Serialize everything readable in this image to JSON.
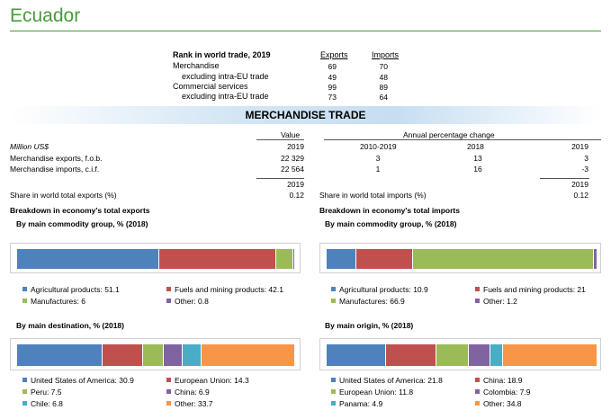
{
  "country": "Ecuador",
  "rank": {
    "heading": "Rank in world trade, 2019",
    "exports_label": "Exports",
    "imports_label": "Imports",
    "rows": [
      {
        "label": "Merchandise",
        "exports": "69",
        "imports": "70"
      },
      {
        "label": "excluding intra-EU trade",
        "exports": "49",
        "imports": "48"
      },
      {
        "label": "Commercial services",
        "exports": "99",
        "imports": "89"
      },
      {
        "label": "excluding intra-EU trade",
        "exports": "73",
        "imports": "64"
      }
    ]
  },
  "section_title": "MERCHANDISE TRADE",
  "table": {
    "value_label": "Value",
    "annual_label": "Annual percentage change",
    "unit": "Million US$",
    "col_year_value": "2019",
    "col_p1": "2010-2019",
    "col_p2": "2018",
    "col_p3": "2019",
    "rows": [
      {
        "label": "Merchandise exports, f.o.b.",
        "value": "22 329",
        "p1": "3",
        "p2": "13",
        "p3": "3"
      },
      {
        "label": "Merchandise imports, c.i.f.",
        "value": "22 564",
        "p1": "1",
        "p2": "16",
        "p3": "-3"
      }
    ]
  },
  "share": {
    "year_left": "2019",
    "year_right": "2019",
    "exports_label": "Share in world total exports (%)",
    "exports_value": "0.12",
    "imports_label": "Share in world total imports (%)",
    "imports_value": "0.12"
  },
  "breakdown": {
    "exports_heading": "Breakdown in economy's total exports",
    "imports_heading": "Breakdown in economy's total imports",
    "by_commodity": "By main commodity group, % (2018)",
    "by_destination": "By main destination, % (2018)",
    "by_origin": "By main origin, % (2018)"
  },
  "chart_data": [
    {
      "type": "bar",
      "title": "By main commodity group, % (2018)",
      "orientation": "horizontal-stacked",
      "series": [
        {
          "name": "Agricultural products",
          "label": "Agricultural products: 51.1",
          "value": 51.1,
          "color": "#4f81bd"
        },
        {
          "name": "Fuels and mining products",
          "label": "Fuels and mining products: 42.1",
          "value": 42.1,
          "color": "#c0504d"
        },
        {
          "name": "Manufactures",
          "label": "Manufactures: 6",
          "value": 6,
          "color": "#9bbb59"
        },
        {
          "name": "Other",
          "label": "Other: 0.8",
          "value": 0.8,
          "color": "#8064a2"
        }
      ]
    },
    {
      "type": "bar",
      "title": "By main commodity group, % (2018)",
      "orientation": "horizontal-stacked",
      "series": [
        {
          "name": "Agricultural products",
          "label": "Agricultural products: 10.9",
          "value": 10.9,
          "color": "#4f81bd"
        },
        {
          "name": "Fuels and mining products",
          "label": "Fuels and mining products: 21",
          "value": 21,
          "color": "#c0504d"
        },
        {
          "name": "Manufactures",
          "label": "Manufactures: 66.9",
          "value": 66.9,
          "color": "#9bbb59"
        },
        {
          "name": "Other",
          "label": "Other: 1.2",
          "value": 1.2,
          "color": "#8064a2"
        }
      ]
    },
    {
      "type": "bar",
      "title": "By main destination, % (2018)",
      "orientation": "horizontal-stacked",
      "series": [
        {
          "name": "United States of America",
          "label": "United States of America: 30.9",
          "value": 30.9,
          "color": "#4f81bd"
        },
        {
          "name": "European Union",
          "label": "European Union: 14.3",
          "value": 14.3,
          "color": "#c0504d"
        },
        {
          "name": "Peru",
          "label": "Peru: 7.5",
          "value": 7.5,
          "color": "#9bbb59"
        },
        {
          "name": "China",
          "label": "China: 6.9",
          "value": 6.9,
          "color": "#8064a2"
        },
        {
          "name": "Chile",
          "label": "Chile: 6.8",
          "value": 6.8,
          "color": "#4bacc6"
        },
        {
          "name": "Other",
          "label": "Other: 33.7",
          "value": 33.7,
          "color": "#f79646"
        }
      ]
    },
    {
      "type": "bar",
      "title": "By main origin, % (2018)",
      "orientation": "horizontal-stacked",
      "series": [
        {
          "name": "United States of America",
          "label": "United States of America: 21.8",
          "value": 21.8,
          "color": "#4f81bd"
        },
        {
          "name": "China",
          "label": "China: 18.9",
          "value": 18.9,
          "color": "#c0504d"
        },
        {
          "name": "European Union",
          "label": "European Union: 11.8",
          "value": 11.8,
          "color": "#9bbb59"
        },
        {
          "name": "Colombia",
          "label": "Colombia: 7.9",
          "value": 7.9,
          "color": "#8064a2"
        },
        {
          "name": "Panama",
          "label": "Panama: 4.9",
          "value": 4.9,
          "color": "#4bacc6"
        },
        {
          "name": "Other",
          "label": "Other: 34.8",
          "value": 34.8,
          "color": "#f79646"
        }
      ]
    }
  ]
}
